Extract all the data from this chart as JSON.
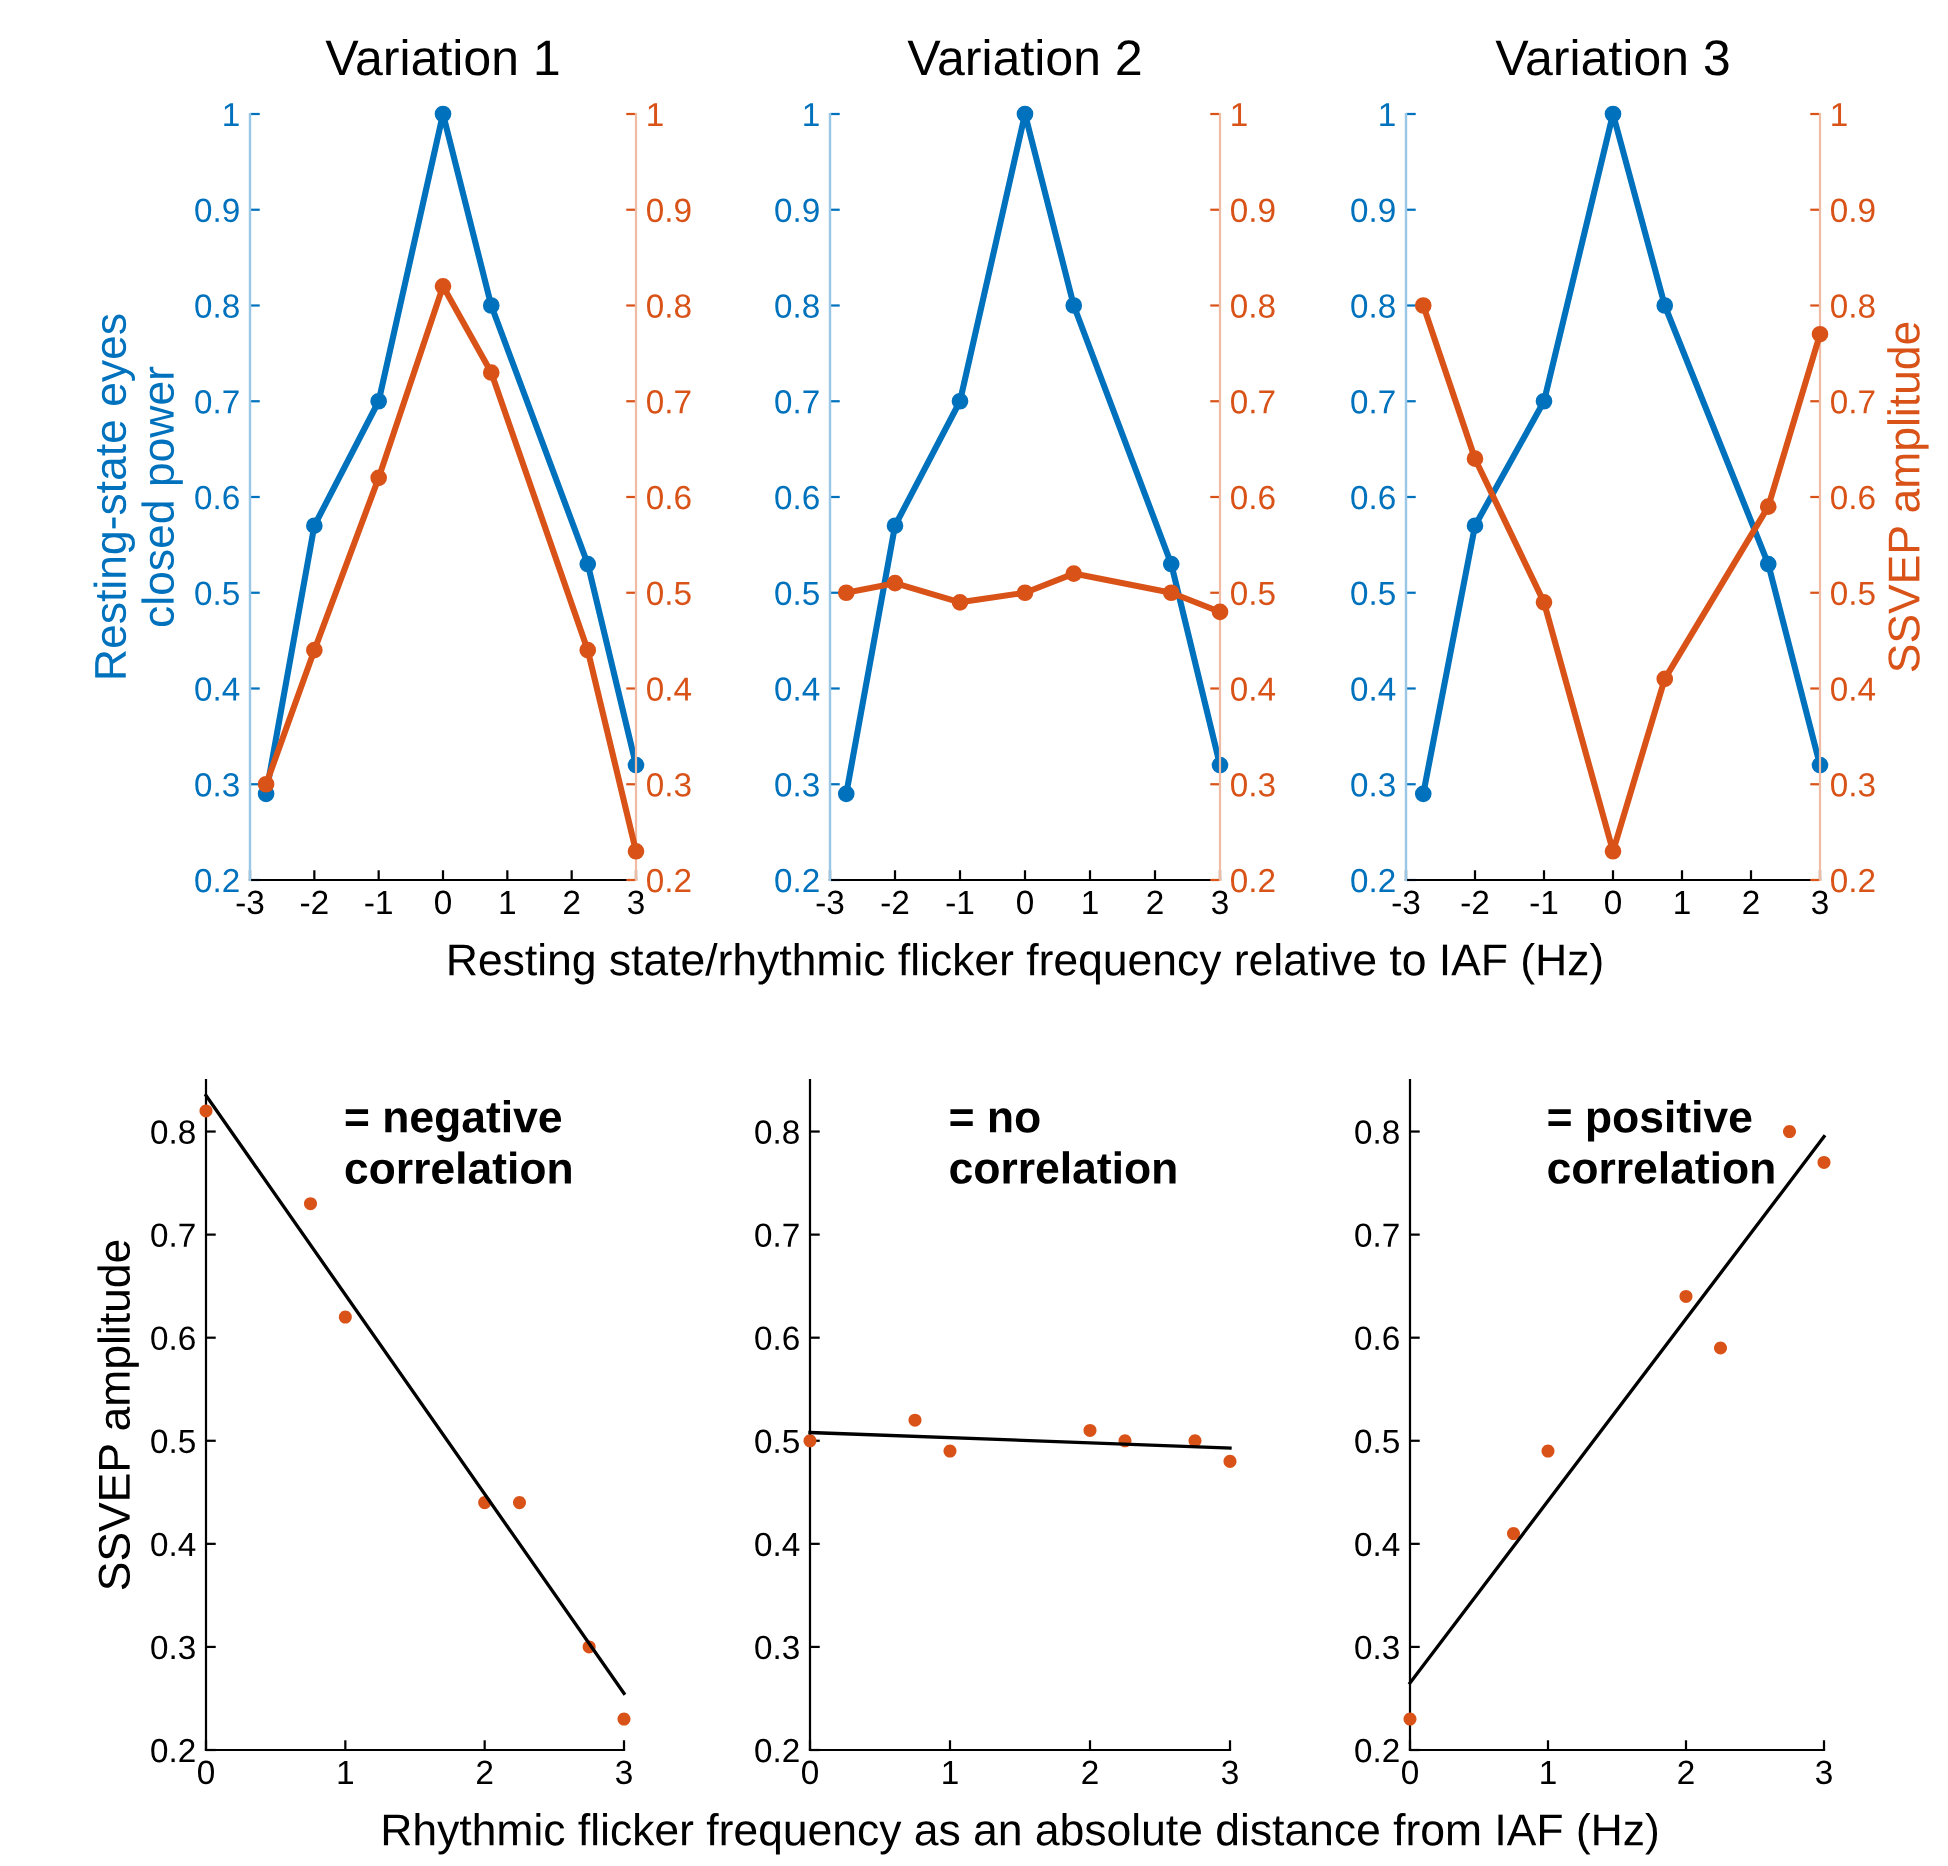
{
  "chart_data": [
    {
      "type": "line",
      "title": "Variation 1",
      "ylabel": "Resting-state eyes\nclosed power",
      "xlim": [
        -3,
        3
      ],
      "xticks": [
        -3,
        -2,
        -1,
        0,
        1,
        2,
        3
      ],
      "ylim": [
        0.2,
        1
      ],
      "yticks": [
        0.2,
        0.3,
        0.4,
        0.5,
        0.6,
        0.7,
        0.8,
        0.9,
        1
      ],
      "y2lim": [
        0.2,
        1
      ],
      "y2ticks": [
        0.2,
        0.3,
        0.4,
        0.5,
        0.6,
        0.7,
        0.8,
        0.9,
        1
      ],
      "marker": "circle",
      "grid": false,
      "legend": false,
      "x": [
        -2.75,
        -2,
        -1,
        0,
        0.75,
        2.25,
        3
      ],
      "series": [
        {
          "color": "#0072bd",
          "axis": "y",
          "values": [
            0.29,
            0.57,
            0.7,
            1.0,
            0.8,
            0.53,
            0.32
          ]
        },
        {
          "color": "#d95319",
          "axis": "y2",
          "values": [
            0.3,
            0.44,
            0.62,
            0.82,
            0.73,
            0.44,
            0.23
          ]
        }
      ]
    },
    {
      "type": "line",
      "title": "Variation 2",
      "xlabel": "Resting state/rhythmic flicker frequency relative to IAF (Hz)",
      "xlim": [
        -3,
        3
      ],
      "xticks": [
        -3,
        -2,
        -1,
        0,
        1,
        2,
        3
      ],
      "ylim": [
        0.2,
        1
      ],
      "yticks": [
        0.2,
        0.3,
        0.4,
        0.5,
        0.6,
        0.7,
        0.8,
        0.9,
        1
      ],
      "y2lim": [
        0.2,
        1
      ],
      "y2ticks": [
        0.2,
        0.3,
        0.4,
        0.5,
        0.6,
        0.7,
        0.8,
        0.9,
        1
      ],
      "marker": "circle",
      "grid": false,
      "legend": false,
      "x": [
        -2.75,
        -2,
        -1,
        0,
        0.75,
        2.25,
        3
      ],
      "series": [
        {
          "color": "#0072bd",
          "axis": "y",
          "values": [
            0.29,
            0.57,
            0.7,
            1.0,
            0.8,
            0.53,
            0.32
          ]
        },
        {
          "color": "#d95319",
          "axis": "y2",
          "values": [
            0.5,
            0.51,
            0.49,
            0.5,
            0.52,
            0.5,
            0.48
          ]
        }
      ]
    },
    {
      "type": "line",
      "title": "Variation 3",
      "y2label": "SSVEP amplitude",
      "xlim": [
        -3,
        3
      ],
      "xticks": [
        -3,
        -2,
        -1,
        0,
        1,
        2,
        3
      ],
      "ylim": [
        0.2,
        1
      ],
      "yticks": [
        0.2,
        0.3,
        0.4,
        0.5,
        0.6,
        0.7,
        0.8,
        0.9,
        1
      ],
      "y2lim": [
        0.2,
        1
      ],
      "y2ticks": [
        0.2,
        0.3,
        0.4,
        0.5,
        0.6,
        0.7,
        0.8,
        0.9,
        1
      ],
      "marker": "circle",
      "grid": false,
      "legend": false,
      "x": [
        -2.75,
        -2,
        -1,
        0,
        0.75,
        2.25,
        3
      ],
      "series": [
        {
          "color": "#0072bd",
          "axis": "y",
          "values": [
            0.29,
            0.57,
            0.7,
            1.0,
            0.8,
            0.53,
            0.32
          ]
        },
        {
          "color": "#d95319",
          "axis": "y2",
          "values": [
            0.8,
            0.64,
            0.49,
            0.23,
            0.41,
            0.59,
            0.77
          ]
        }
      ]
    },
    {
      "type": "scatter",
      "ylabel": "SSVEP amplitude",
      "annotations": [
        "= negative\ncorrelation"
      ],
      "xlim": [
        0,
        3
      ],
      "xticks": [
        0,
        1,
        2,
        3
      ],
      "ylim": [
        0.2,
        0.85
      ],
      "yticks": [
        0.2,
        0.3,
        0.4,
        0.5,
        0.6,
        0.7,
        0.8
      ],
      "marker": "circle",
      "grid": false,
      "legend": false,
      "series": [
        {
          "type": "scatter",
          "color": "#d95319",
          "x": [
            2.75,
            2,
            1,
            0,
            0.75,
            2.25,
            3
          ],
          "values": [
            0.3,
            0.44,
            0.62,
            0.82,
            0.73,
            0.44,
            0.23
          ]
        },
        {
          "type": "line",
          "color": "#000000",
          "marker": "none",
          "x": [
            0,
            3
          ],
          "values": [
            0.835,
            0.255
          ]
        }
      ]
    },
    {
      "type": "scatter",
      "xlabel": "Rhythmic flicker frequency as an absolute distance from IAF (Hz)",
      "annotations": [
        "= no\ncorrelation"
      ],
      "xlim": [
        0,
        3
      ],
      "xticks": [
        0,
        1,
        2,
        3
      ],
      "ylim": [
        0.2,
        0.85
      ],
      "yticks": [
        0.2,
        0.3,
        0.4,
        0.5,
        0.6,
        0.7,
        0.8
      ],
      "marker": "circle",
      "grid": false,
      "legend": false,
      "series": [
        {
          "type": "scatter",
          "color": "#d95319",
          "x": [
            2.75,
            2,
            1,
            0,
            0.75,
            2.25,
            3
          ],
          "values": [
            0.5,
            0.51,
            0.49,
            0.5,
            0.52,
            0.5,
            0.48
          ]
        },
        {
          "type": "line",
          "color": "#000000",
          "marker": "none",
          "x": [
            0,
            3
          ],
          "values": [
            0.508,
            0.493
          ]
        }
      ]
    },
    {
      "type": "scatter",
      "annotations": [
        "= positive\ncorrelation"
      ],
      "xlim": [
        0,
        3
      ],
      "xticks": [
        0,
        1,
        2,
        3
      ],
      "ylim": [
        0.2,
        0.85
      ],
      "yticks": [
        0.2,
        0.3,
        0.4,
        0.5,
        0.6,
        0.7,
        0.8
      ],
      "marker": "circle",
      "grid": false,
      "legend": false,
      "series": [
        {
          "type": "scatter",
          "color": "#d95319",
          "x": [
            2.75,
            2,
            1,
            0,
            0.75,
            2.25,
            3
          ],
          "values": [
            0.8,
            0.64,
            0.49,
            0.23,
            0.41,
            0.59,
            0.77
          ]
        },
        {
          "type": "line",
          "color": "#000000",
          "marker": "none",
          "x": [
            0,
            3
          ],
          "values": [
            0.265,
            0.795
          ]
        }
      ]
    }
  ]
}
